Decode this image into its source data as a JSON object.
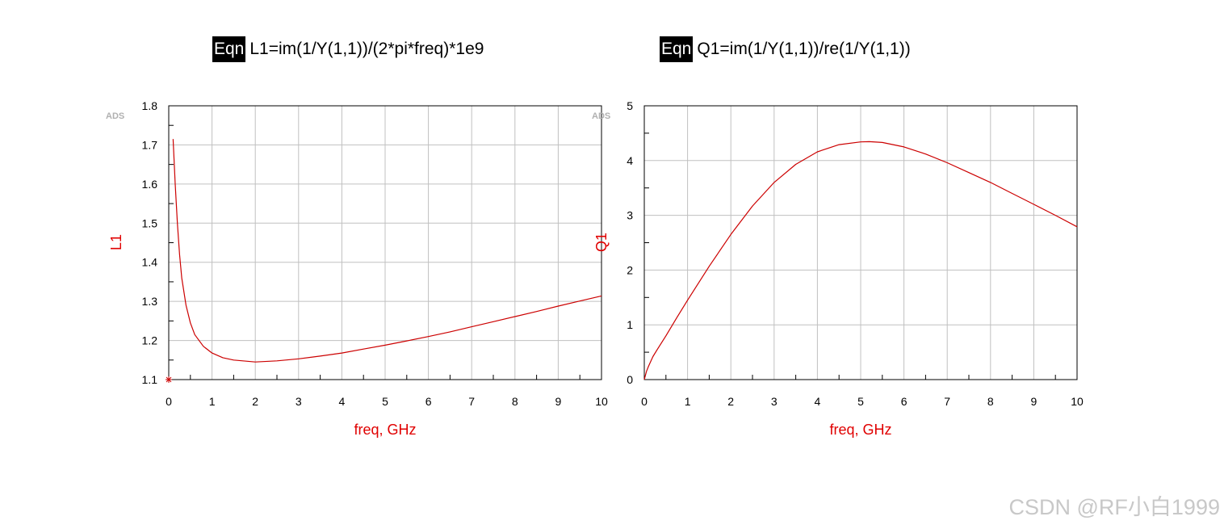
{
  "equations": {
    "left": {
      "tag": "Eqn",
      "text": "L1=im(1/Y(1,1))/(2*pi*freq)*1e9"
    },
    "right": {
      "tag": "Eqn",
      "text": "Q1=im(1/Y(1,1))/re(1/Y(1,1))"
    }
  },
  "watermark": "CSDN @RF小白1999",
  "colors": {
    "trace": "#cc0000",
    "label": "#e00000",
    "grid": "#c0c0c0",
    "frame": "#000000",
    "ads_logo": "#b0b0b0"
  },
  "chart_data": [
    {
      "type": "line",
      "logo": "ADS",
      "xlabel": "freq, GHz",
      "ylabel": "L1",
      "xlim": [
        0,
        10
      ],
      "ylim": [
        1.1,
        1.8
      ],
      "xticks": [
        "0",
        "1",
        "2",
        "3",
        "4",
        "5",
        "6",
        "7",
        "8",
        "9",
        "10"
      ],
      "yticks": [
        "1.1",
        "1.2",
        "1.3",
        "1.4",
        "1.5",
        "1.6",
        "1.7",
        "1.8"
      ],
      "grid": true,
      "marker": {
        "x": 0,
        "y": 1.1,
        "symbol": "star"
      },
      "series": [
        {
          "x": [
            0.1,
            0.15,
            0.2,
            0.25,
            0.3,
            0.4,
            0.5,
            0.6,
            0.8,
            1.0,
            1.25,
            1.5,
            2.0,
            2.5,
            3.0,
            3.5,
            4.0,
            4.5,
            5.0,
            5.5,
            6.0,
            6.5,
            7.0,
            7.5,
            8.0,
            8.5,
            9.0,
            9.5,
            10.0
          ],
          "y": [
            1.715,
            1.6,
            1.5,
            1.42,
            1.36,
            1.29,
            1.245,
            1.215,
            1.185,
            1.168,
            1.156,
            1.15,
            1.145,
            1.148,
            1.153,
            1.16,
            1.168,
            1.178,
            1.188,
            1.199,
            1.21,
            1.222,
            1.235,
            1.248,
            1.261,
            1.274,
            1.288,
            1.301,
            1.314
          ]
        }
      ]
    },
    {
      "type": "line",
      "logo": "ADS",
      "xlabel": "freq, GHz",
      "ylabel": "Q1",
      "xlim": [
        0,
        10
      ],
      "ylim": [
        0,
        5
      ],
      "xticks": [
        "0",
        "1",
        "2",
        "3",
        "4",
        "5",
        "6",
        "7",
        "8",
        "9",
        "10"
      ],
      "yticks": [
        "0",
        "1",
        "2",
        "3",
        "4",
        "5"
      ],
      "grid": true,
      "series": [
        {
          "x": [
            0.0,
            0.05,
            0.1,
            0.2,
            0.3,
            0.5,
            0.75,
            1.0,
            1.5,
            2.0,
            2.5,
            3.0,
            3.5,
            4.0,
            4.5,
            5.0,
            5.2,
            5.5,
            6.0,
            6.5,
            7.0,
            7.5,
            8.0,
            8.5,
            9.0,
            9.5,
            10.0
          ],
          "y": [
            0.0,
            0.15,
            0.25,
            0.42,
            0.55,
            0.8,
            1.13,
            1.45,
            2.07,
            2.65,
            3.17,
            3.6,
            3.93,
            4.16,
            4.29,
            4.34,
            4.345,
            4.33,
            4.25,
            4.12,
            3.96,
            3.78,
            3.6,
            3.4,
            3.2,
            3.0,
            2.79
          ]
        }
      ]
    }
  ]
}
